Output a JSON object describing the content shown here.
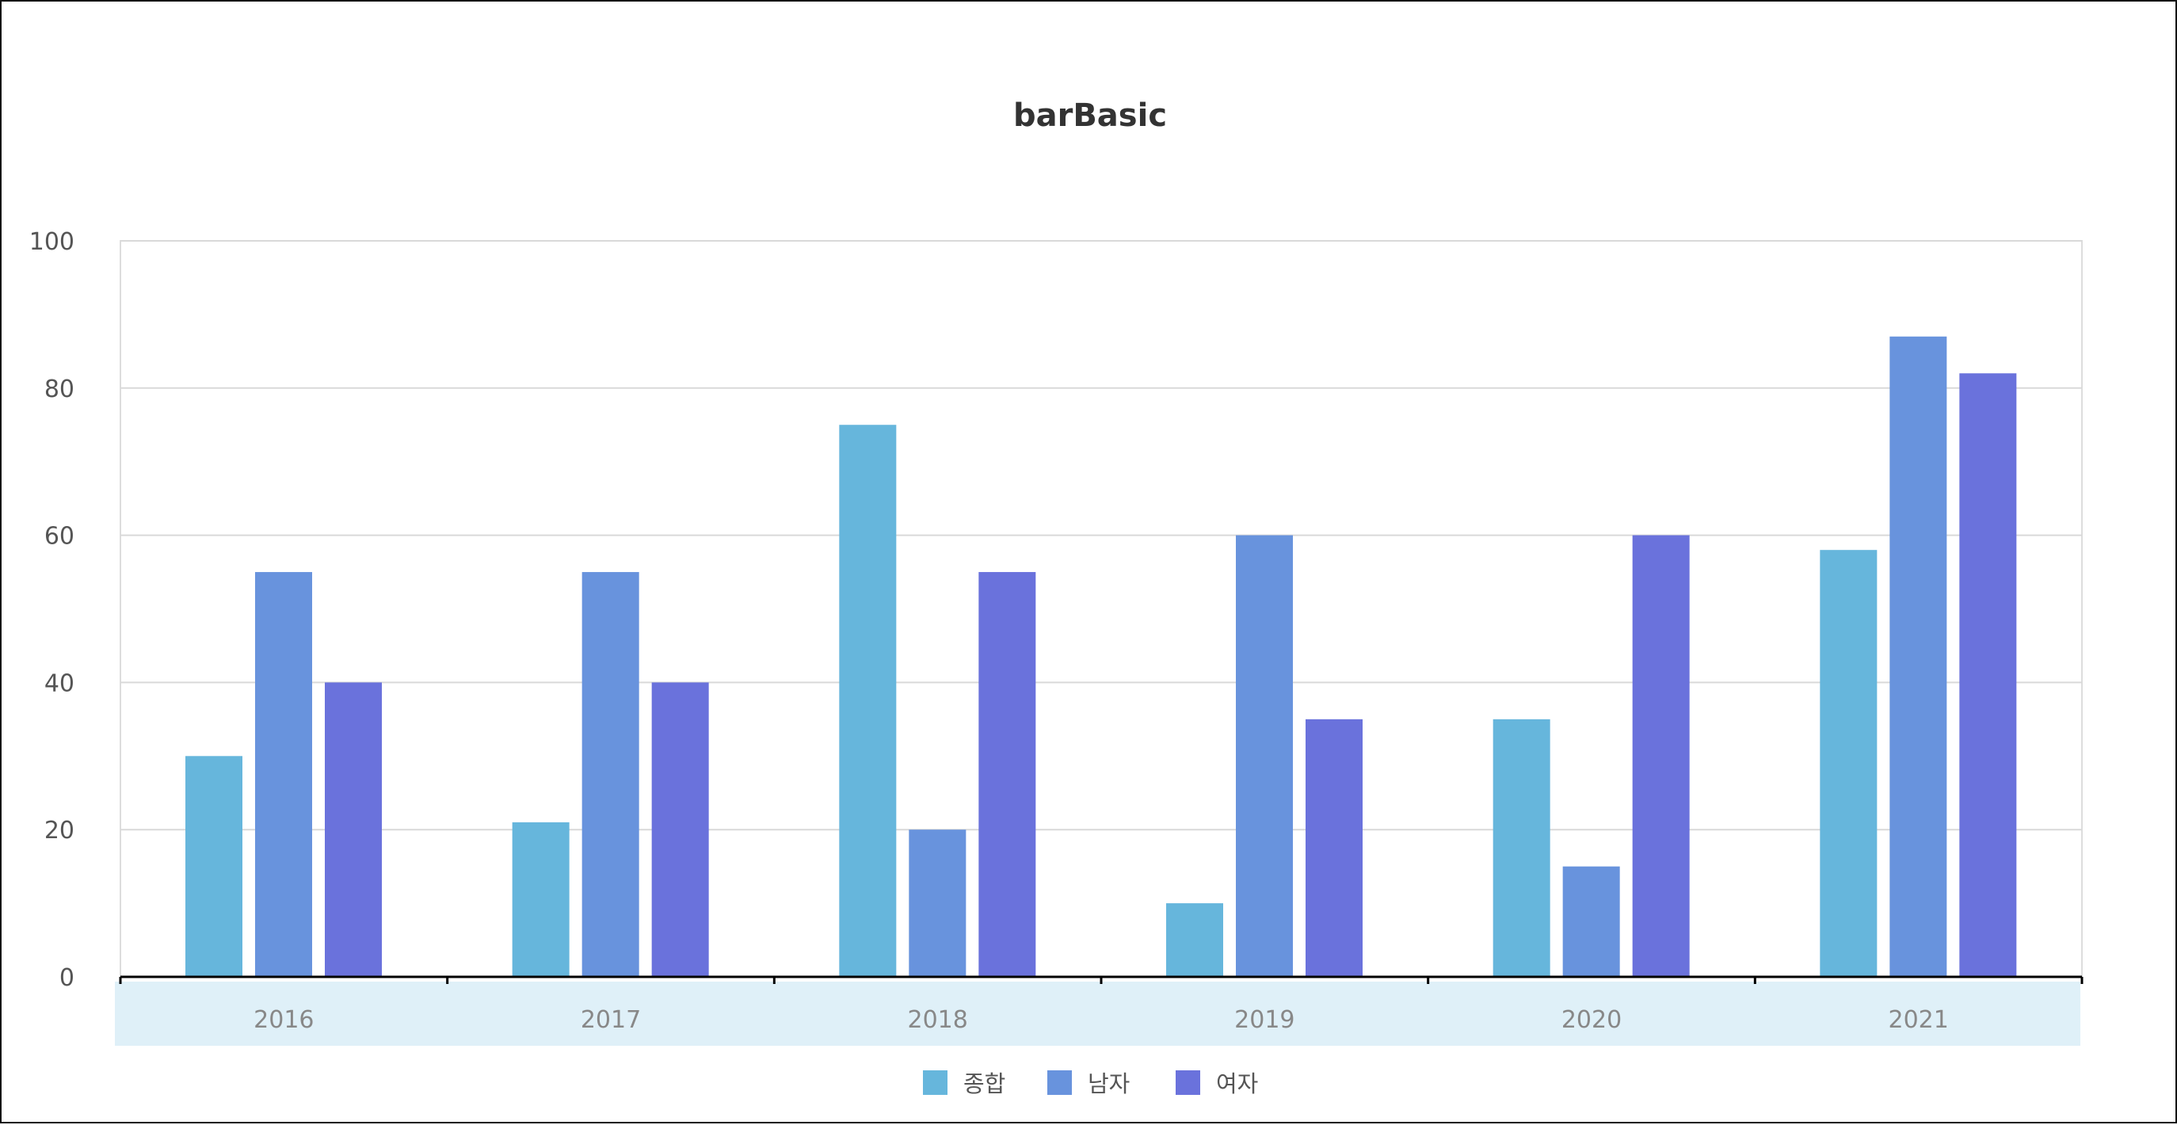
{
  "chart_data": {
    "type": "bar",
    "title": "barBasic",
    "xlabel": "",
    "ylabel": "",
    "categories": [
      "2016",
      "2017",
      "2018",
      "2019",
      "2020",
      "2021"
    ],
    "series": [
      {
        "name": "종합",
        "values": [
          30,
          21,
          75,
          10,
          35,
          58
        ],
        "color": "#66B6DC"
      },
      {
        "name": "남자",
        "values": [
          55,
          55,
          20,
          60,
          15,
          87
        ],
        "color": "#6893DD"
      },
      {
        "name": "여자",
        "values": [
          40,
          40,
          55,
          35,
          60,
          82
        ],
        "color": "#6A72DC"
      }
    ],
    "ylim": [
      0,
      100
    ],
    "yticks": [
      0,
      20,
      40,
      60,
      80,
      100
    ],
    "grid": true,
    "legend_position": "bottom-center",
    "colors": {
      "axis": "#000000",
      "grid": "#d9d9d9",
      "category_band": "#dff0f8"
    }
  }
}
